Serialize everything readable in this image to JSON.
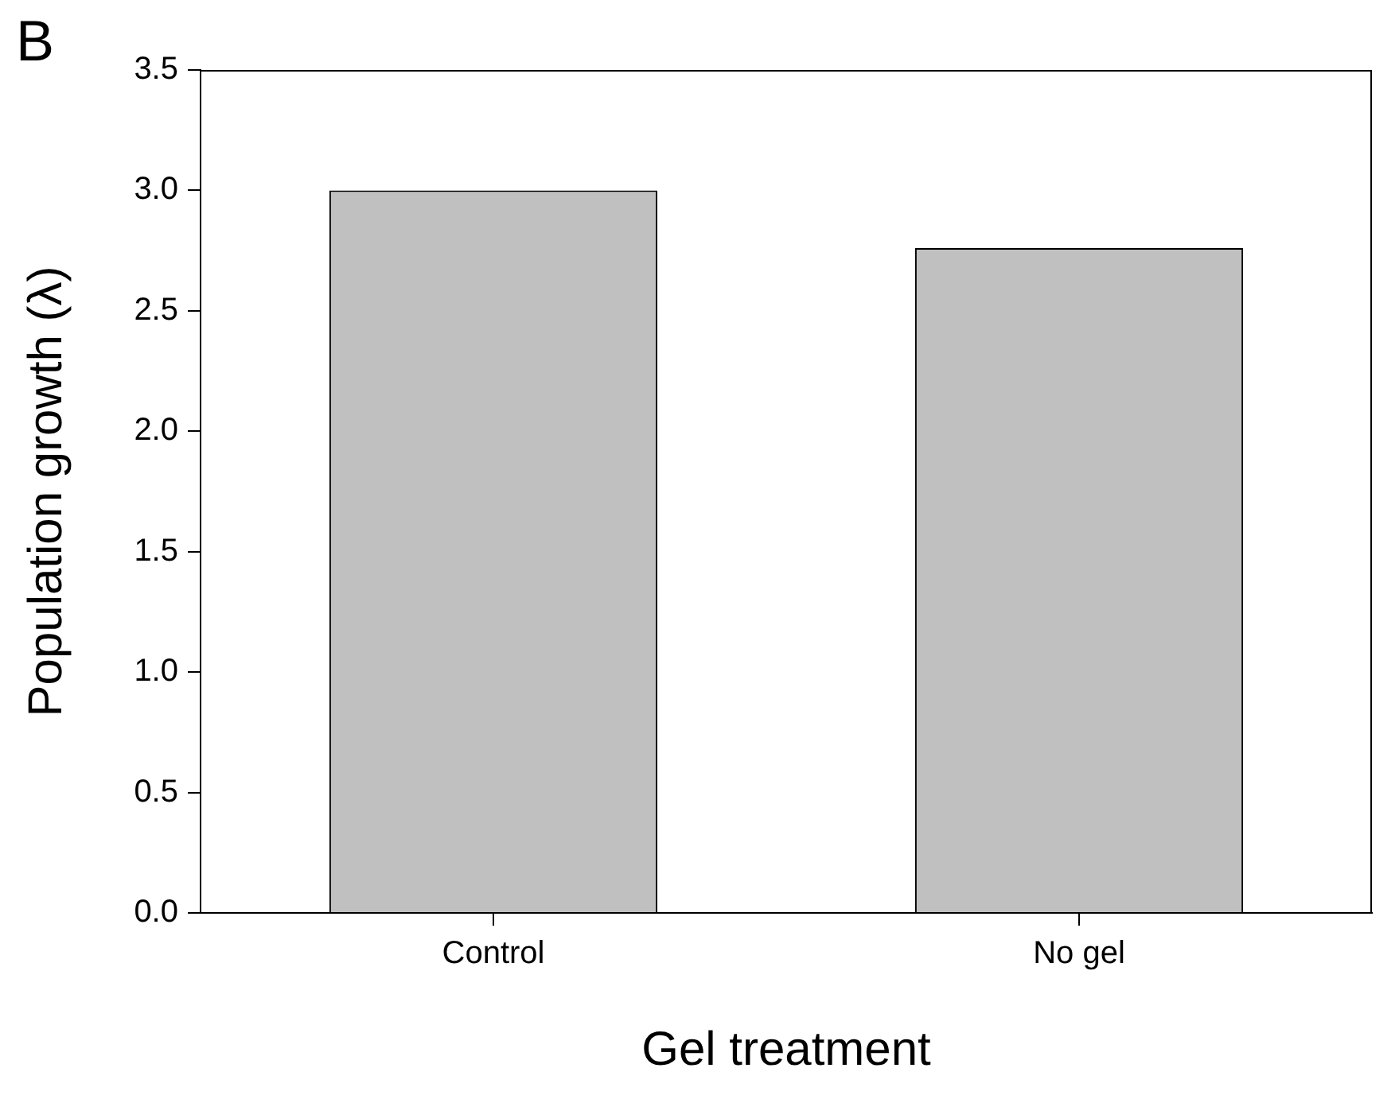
{
  "chart_data": {
    "type": "bar",
    "xlabel": "Gel treatment",
    "ylabel": "Population growth (λ)",
    "annotations": [
      "B"
    ],
    "categories": [
      "Control",
      "No gel"
    ],
    "series": [
      {
        "color": "#c0c0c0",
        "values": [
          3.0,
          2.76
        ]
      }
    ],
    "ylim": [
      0,
      3.5
    ],
    "yticks": [
      {
        "value": 0,
        "label": "0.0"
      },
      {
        "value": 0.5,
        "label": "0.5"
      },
      {
        "value": 1,
        "label": "1.0"
      },
      {
        "value": 1.5,
        "label": "1.5"
      },
      {
        "value": 2,
        "label": "2.0"
      },
      {
        "value": 2.5,
        "label": "2.5"
      },
      {
        "value": 3,
        "label": "3.0"
      },
      {
        "value": 3.5,
        "label": "3.5"
      }
    ],
    "grid": false,
    "legend": false
  }
}
